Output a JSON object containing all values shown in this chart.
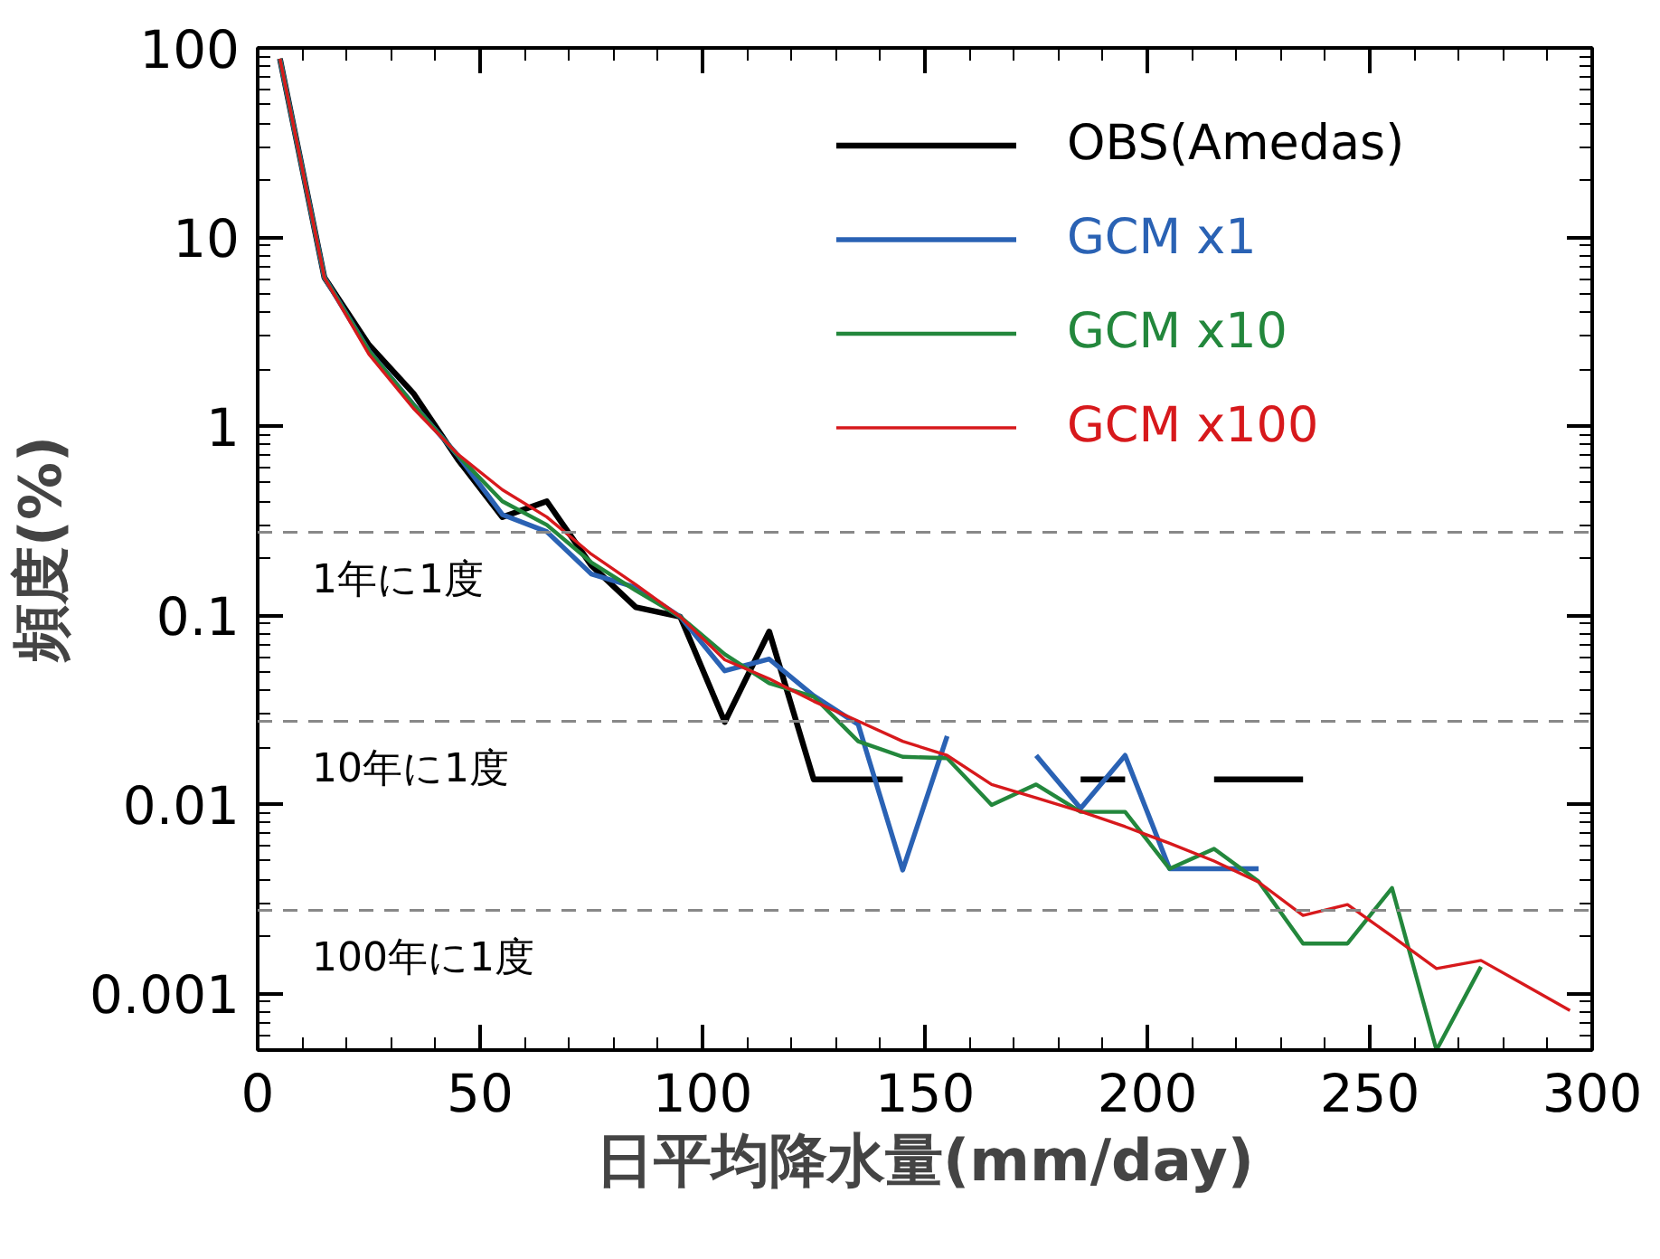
{
  "chart_data": {
    "type": "line",
    "xlabel": "日平均降水量(mm/day)",
    "ylabel": "頻度(%)",
    "log": "y",
    "grid": false,
    "legend": "top right",
    "marker": "none",
    "line_style": "solid",
    "xlim": [
      0,
      300
    ],
    "xticks": [
      0,
      50,
      100,
      150,
      200,
      250,
      300
    ],
    "ylim": [
      0.0005,
      100
    ],
    "yticks": [
      0.001,
      0.01,
      0.1,
      1,
      10,
      100
    ],
    "x": [
      5,
      15,
      25,
      35,
      45,
      55,
      65,
      75,
      85,
      95,
      105,
      115,
      125,
      135,
      145,
      155,
      165,
      175,
      185,
      195,
      205,
      215,
      225,
      235,
      245,
      255,
      265,
      275,
      285,
      295
    ],
    "series": [
      {
        "name": "OBS(Amedas)",
        "color": "#000000",
        "values": [
          87.7,
          6.1,
          2.69,
          1.49,
          0.665,
          0.33,
          0.4,
          0.183,
          0.11,
          0.098,
          0.0272,
          0.0818,
          0.0135,
          0.0135,
          0.0135,
          null,
          null,
          null,
          0.0135,
          0.0135,
          null,
          0.0135,
          0.0135,
          0.0135,
          null,
          null,
          null,
          null,
          null,
          null
        ]
      },
      {
        "name": "GCM x1",
        "color": "#2a62b4",
        "values": [
          87.7,
          6.1,
          2.5,
          1.3,
          0.7,
          0.34,
          0.276,
          0.165,
          0.14,
          0.098,
          0.0507,
          0.0585,
          0.0374,
          0.0264,
          0.00448,
          0.0229,
          null,
          0.0181,
          0.0095,
          0.0181,
          0.00455,
          0.00455,
          0.00455,
          null,
          null,
          null,
          null,
          null,
          null,
          null
        ]
      },
      {
        "name": "GCM x10",
        "color": "#23873c",
        "values": [
          87.7,
          6.1,
          2.5,
          1.3,
          0.7,
          0.4,
          0.3,
          0.19,
          0.135,
          0.098,
          0.062,
          0.0436,
          0.037,
          0.0215,
          0.0178,
          0.0175,
          0.0099,
          0.0127,
          0.0091,
          0.0091,
          0.00455,
          0.0058,
          0.0039,
          0.00183,
          0.00183,
          0.0036,
          0.0005,
          0.00138,
          null,
          null
        ]
      },
      {
        "name": "GCM x100",
        "color": "#d7191c",
        "values": [
          87.7,
          6.08,
          2.4,
          1.24,
          0.71,
          0.46,
          0.33,
          0.21,
          0.145,
          0.098,
          0.058,
          0.046,
          0.035,
          0.0275,
          0.0215,
          0.0181,
          0.0127,
          0.0108,
          0.00914,
          0.0076,
          0.0062,
          0.005,
          0.00387,
          0.00258,
          0.00294,
          0.002,
          0.00135,
          0.00149,
          0.0011,
          0.00081
        ]
      }
    ],
    "ref_lines": [
      {
        "axis": "y",
        "value": 0.274,
        "color": "#888888",
        "line_style": "dashed"
      },
      {
        "axis": "y",
        "value": 0.0274,
        "color": "#888888",
        "line_style": "dashed"
      },
      {
        "axis": "y",
        "value": 0.00274,
        "color": "#888888",
        "line_style": "dashed"
      }
    ],
    "annotations": [
      "1年に1度",
      "10年に1度",
      "100年に1度"
    ]
  }
}
